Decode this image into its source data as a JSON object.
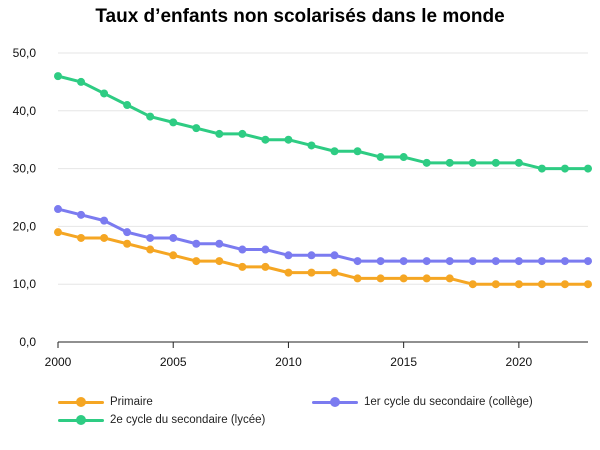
{
  "chart_data": {
    "type": "line",
    "title": "Taux d’enfants non scolarisés dans le monde",
    "xlabel": "",
    "ylabel": "",
    "x": [
      2000,
      2001,
      2002,
      2003,
      2004,
      2005,
      2006,
      2007,
      2008,
      2009,
      2010,
      2011,
      2012,
      2013,
      2014,
      2015,
      2016,
      2017,
      2018,
      2019,
      2020,
      2021,
      2022,
      2023
    ],
    "xlim": [
      2000,
      2023
    ],
    "ylim": [
      0,
      50
    ],
    "x_ticks": [
      "2000",
      "2005",
      "2010",
      "2015",
      "2020"
    ],
    "y_ticks": [
      "0,0",
      "10,0",
      "20,0",
      "30,0",
      "40,0",
      "50,0"
    ],
    "grid": "horizontal",
    "legend_position": "bottom",
    "series": [
      {
        "name": "Primaire",
        "color": "#F5A623",
        "values": [
          19,
          18,
          18,
          17,
          16,
          15,
          14,
          14,
          13,
          13,
          12,
          12,
          12,
          11,
          11,
          11,
          11,
          11,
          10,
          10,
          10,
          10,
          10,
          10
        ]
      },
      {
        "name": "1er cycle du secondaire (collège)",
        "color": "#7B7BF0",
        "values": [
          23,
          22,
          21,
          19,
          18,
          18,
          17,
          17,
          16,
          16,
          15,
          15,
          15,
          14,
          14,
          14,
          14,
          14,
          14,
          14,
          14,
          14,
          14,
          14
        ]
      },
      {
        "name": "2e cycle du secondaire (lycée)",
        "color": "#2ECC83",
        "values": [
          46,
          45,
          43,
          41,
          39,
          38,
          37,
          36,
          36,
          35,
          35,
          34,
          33,
          33,
          32,
          32,
          31,
          31,
          31,
          31,
          31,
          30,
          30,
          30
        ]
      }
    ]
  }
}
